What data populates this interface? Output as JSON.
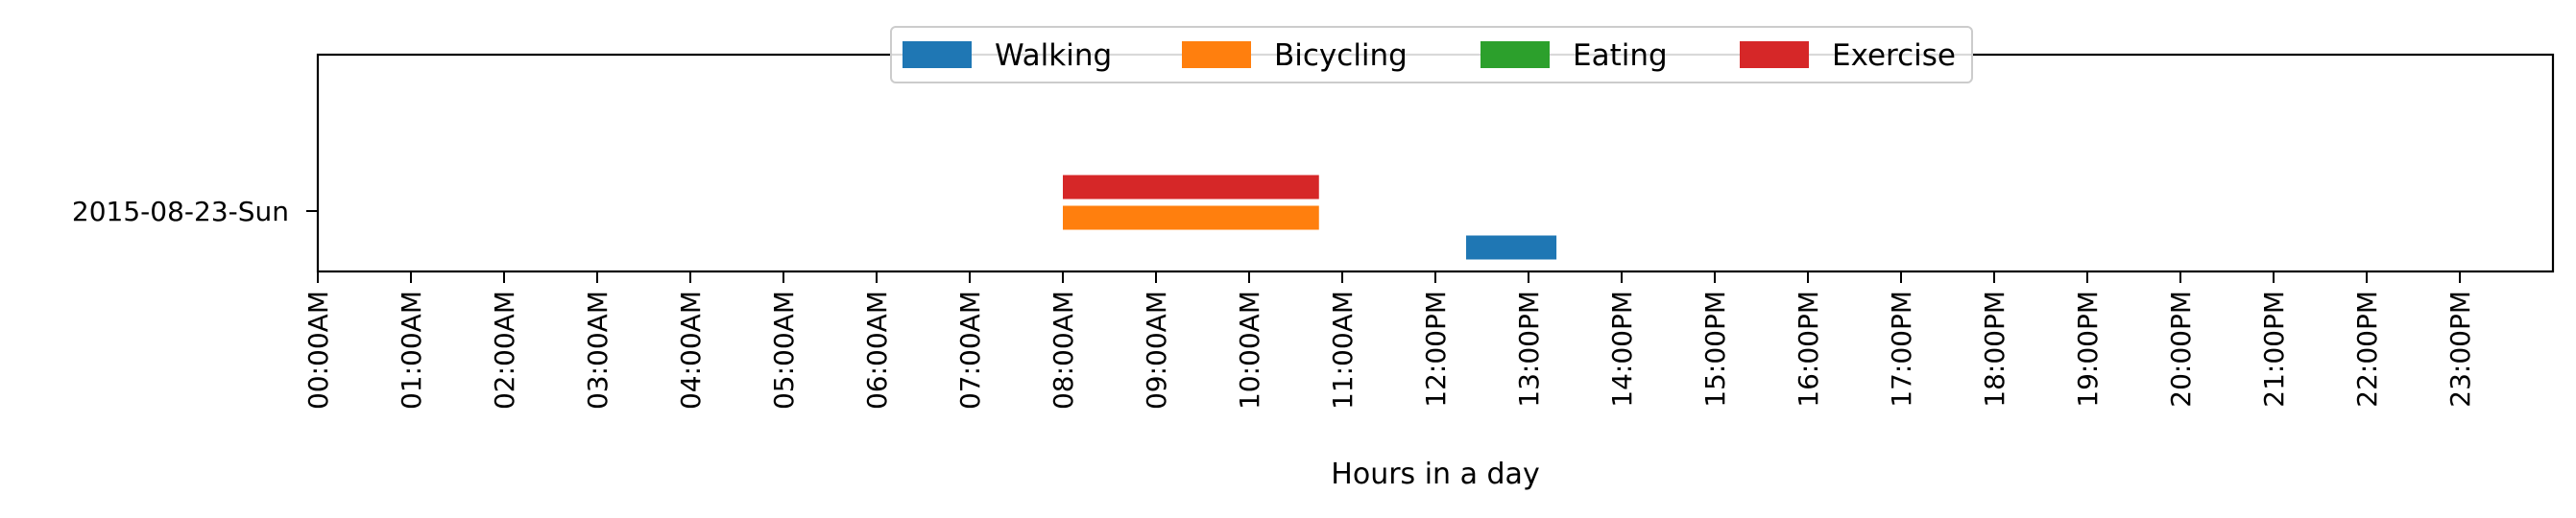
{
  "chart_data": {
    "type": "bar",
    "orientation": "horizontal-timeline",
    "title": "",
    "xlabel": "Hours in a day",
    "ylabel": "",
    "xlim": [
      0,
      24
    ],
    "x_unit": "hours",
    "x_ticks": [
      "00:00AM",
      "01:00AM",
      "02:00AM",
      "03:00AM",
      "04:00AM",
      "05:00AM",
      "06:00AM",
      "07:00AM",
      "08:00AM",
      "09:00AM",
      "10:00AM",
      "11:00AM",
      "12:00PM",
      "13:00PM",
      "14:00PM",
      "15:00PM",
      "16:00PM",
      "17:00PM",
      "18:00PM",
      "19:00PM",
      "20:00PM",
      "21:00PM",
      "22:00PM",
      "23:00PM"
    ],
    "categories": [
      "2015-08-23-Sun"
    ],
    "grid": false,
    "legend_position": "top-center",
    "series": [
      {
        "name": "Walking",
        "color": "#1f77b4",
        "intervals": [
          {
            "category": "2015-08-23-Sun",
            "start": 12.33,
            "end": 13.3
          }
        ]
      },
      {
        "name": "Bicycling",
        "color": "#ff7f0e",
        "intervals": [
          {
            "category": "2015-08-23-Sun",
            "start": 8.0,
            "end": 10.75
          }
        ]
      },
      {
        "name": "Eating",
        "color": "#2ca02c",
        "intervals": []
      },
      {
        "name": "Exercise",
        "color": "#d62728",
        "intervals": [
          {
            "category": "2015-08-23-Sun",
            "start": 8.0,
            "end": 10.75
          }
        ]
      }
    ]
  }
}
